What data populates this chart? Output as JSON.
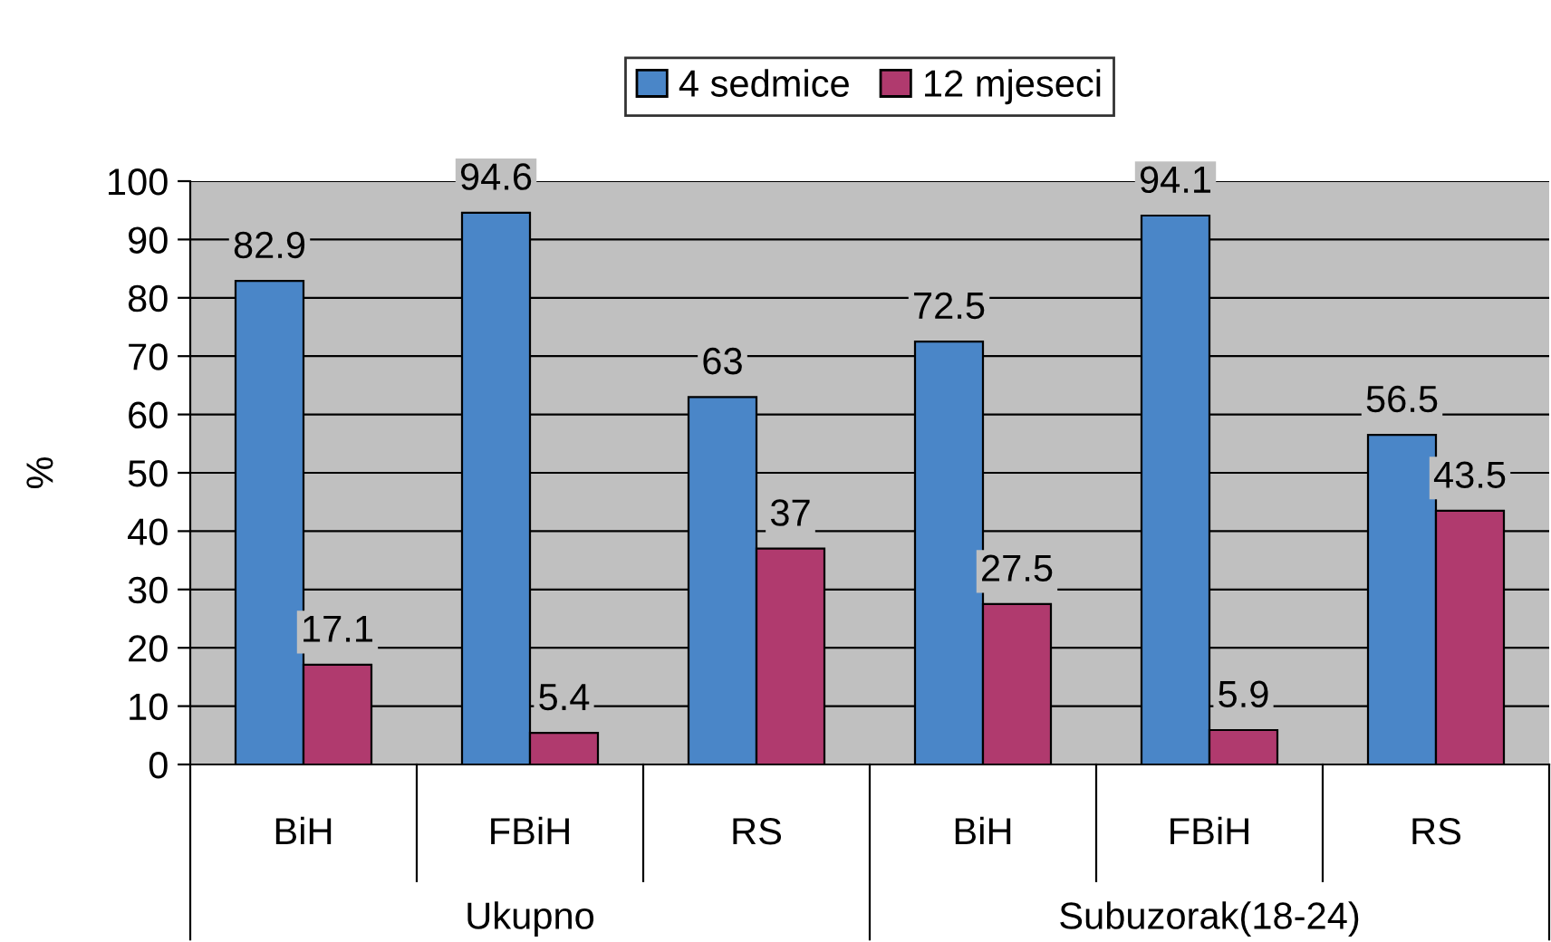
{
  "chart_data": {
    "type": "bar",
    "ylabel": "%",
    "categories": [
      "BiH",
      "FBiH",
      "RS",
      "BiH",
      "FBiH",
      "RS"
    ],
    "series": [
      {
        "name": "4 sedmice",
        "color": "#4a86c8",
        "values": [
          82.9,
          94.6,
          63,
          72.5,
          94.1,
          56.5
        ]
      },
      {
        "name": "12 mjeseci",
        "color": "#b03a6e",
        "values": [
          17.1,
          5.4,
          37,
          27.5,
          5.9,
          43.5
        ]
      }
    ],
    "annotations": [
      "Ukupno",
      "Subuzorak(18-24)"
    ],
    "ylim": [
      0,
      100
    ],
    "yticks": [
      0,
      10,
      20,
      30,
      40,
      50,
      60,
      70,
      80,
      90,
      100
    ],
    "grid": "y",
    "legend": "top",
    "data_labels": true
  }
}
